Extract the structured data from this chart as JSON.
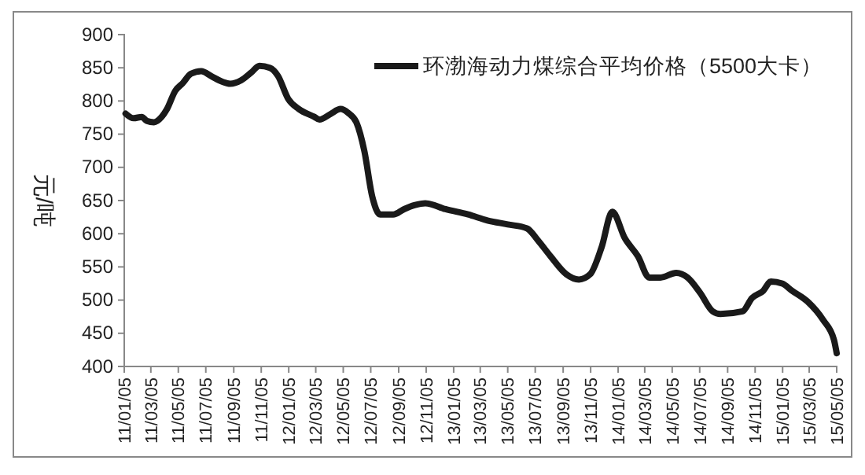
{
  "chart_data": {
    "type": "line",
    "ylabel": "元/吨",
    "legend": "top right",
    "grid": false,
    "marker": "none",
    "line_style": "solid",
    "ylim": [
      400,
      900
    ],
    "yticks": [
      400,
      450,
      500,
      550,
      600,
      650,
      700,
      750,
      800,
      850,
      900
    ],
    "xlim": [
      "2011-01-05",
      "2015-05-05"
    ],
    "xticks": [
      {
        "value": "2011-01-05",
        "label": "11/01/05"
      },
      {
        "value": "2011-03-05",
        "label": "11/03/05"
      },
      {
        "value": "2011-05-05",
        "label": "11/05/05"
      },
      {
        "value": "2011-07-05",
        "label": "11/07/05"
      },
      {
        "value": "2011-09-05",
        "label": "11/09/05"
      },
      {
        "value": "2011-11-05",
        "label": "11/11/05"
      },
      {
        "value": "2012-01-05",
        "label": "12/01/05"
      },
      {
        "value": "2012-03-05",
        "label": "12/03/05"
      },
      {
        "value": "2012-05-05",
        "label": "12/05/05"
      },
      {
        "value": "2012-07-05",
        "label": "12/07/05"
      },
      {
        "value": "2012-09-05",
        "label": "12/09/05"
      },
      {
        "value": "2012-11-05",
        "label": "12/11/05"
      },
      {
        "value": "2013-01-05",
        "label": "13/01/05"
      },
      {
        "value": "2013-03-05",
        "label": "13/03/05"
      },
      {
        "value": "2013-05-05",
        "label": "13/05/05"
      },
      {
        "value": "2013-07-05",
        "label": "13/07/05"
      },
      {
        "value": "2013-09-05",
        "label": "13/09/05"
      },
      {
        "value": "2013-11-05",
        "label": "13/11/05"
      },
      {
        "value": "2014-01-05",
        "label": "14/01/05"
      },
      {
        "value": "2014-03-05",
        "label": "14/03/05"
      },
      {
        "value": "2014-05-05",
        "label": "14/05/05"
      },
      {
        "value": "2014-07-05",
        "label": "14/07/05"
      },
      {
        "value": "2014-09-05",
        "label": "14/09/05"
      },
      {
        "value": "2014-11-05",
        "label": "14/11/05"
      },
      {
        "value": "2015-01-05",
        "label": "15/01/05"
      },
      {
        "value": "2015-03-05",
        "label": "15/03/05"
      },
      {
        "value": "2015-05-05",
        "label": "15/05/05"
      }
    ],
    "x": [
      "2011-01-08",
      "2011-01-26",
      "2011-02-13",
      "2011-02-24",
      "2011-03-12",
      "2011-03-29",
      "2011-04-10",
      "2011-04-28",
      "2011-05-15",
      "2011-06-02",
      "2011-06-25",
      "2011-07-18",
      "2011-08-11",
      "2011-08-28",
      "2011-09-21",
      "2011-10-14",
      "2011-11-01",
      "2011-11-24",
      "2011-12-12",
      "2012-01-04",
      "2012-01-27",
      "2012-03-02",
      "2012-03-13",
      "2012-04-06",
      "2012-04-29",
      "2012-05-16",
      "2012-06-03",
      "2012-06-21",
      "2012-07-08",
      "2012-07-26",
      "2012-08-24",
      "2012-09-17",
      "2012-10-10",
      "2012-11-03",
      "2012-12-18",
      "2013-02-06",
      "2013-03-21",
      "2013-05-05",
      "2013-06-17",
      "2013-07-11",
      "2013-08-08",
      "2013-09-12",
      "2013-10-10",
      "2013-11-04",
      "2013-11-29",
      "2013-12-23",
      "2014-01-20",
      "2014-02-18",
      "2014-03-15",
      "2014-04-09",
      "2014-05-14",
      "2014-06-08",
      "2014-07-06",
      "2014-08-03",
      "2014-08-20",
      "2014-10-08",
      "2014-10-29",
      "2014-11-23",
      "2014-12-10",
      "2015-01-04",
      "2015-01-26",
      "2015-03-01",
      "2015-04-05",
      "2015-04-29",
      "2015-05-05"
    ],
    "series": [
      {
        "name": "环渤海动力煤综合平均价格（5500大卡）",
        "color": "#1a1a1a",
        "values": [
          781,
          774,
          776,
          770,
          768,
          776,
          788,
          815,
          827,
          841,
          845,
          837,
          829,
          826,
          831,
          843,
          853,
          850,
          838,
          803,
          788,
          776,
          772,
          780,
          788,
          782,
          768,
          724,
          657,
          629,
          629,
          637,
          643,
          646,
          637,
          629,
          620,
          614,
          608,
          590,
          566,
          539,
          531,
          539,
          579,
          633,
          593,
          566,
          534,
          534,
          541,
          534,
          511,
          483,
          479,
          483,
          503,
          514,
          528,
          525,
          514,
          498,
          470,
          440,
          420
        ]
      }
    ]
  }
}
